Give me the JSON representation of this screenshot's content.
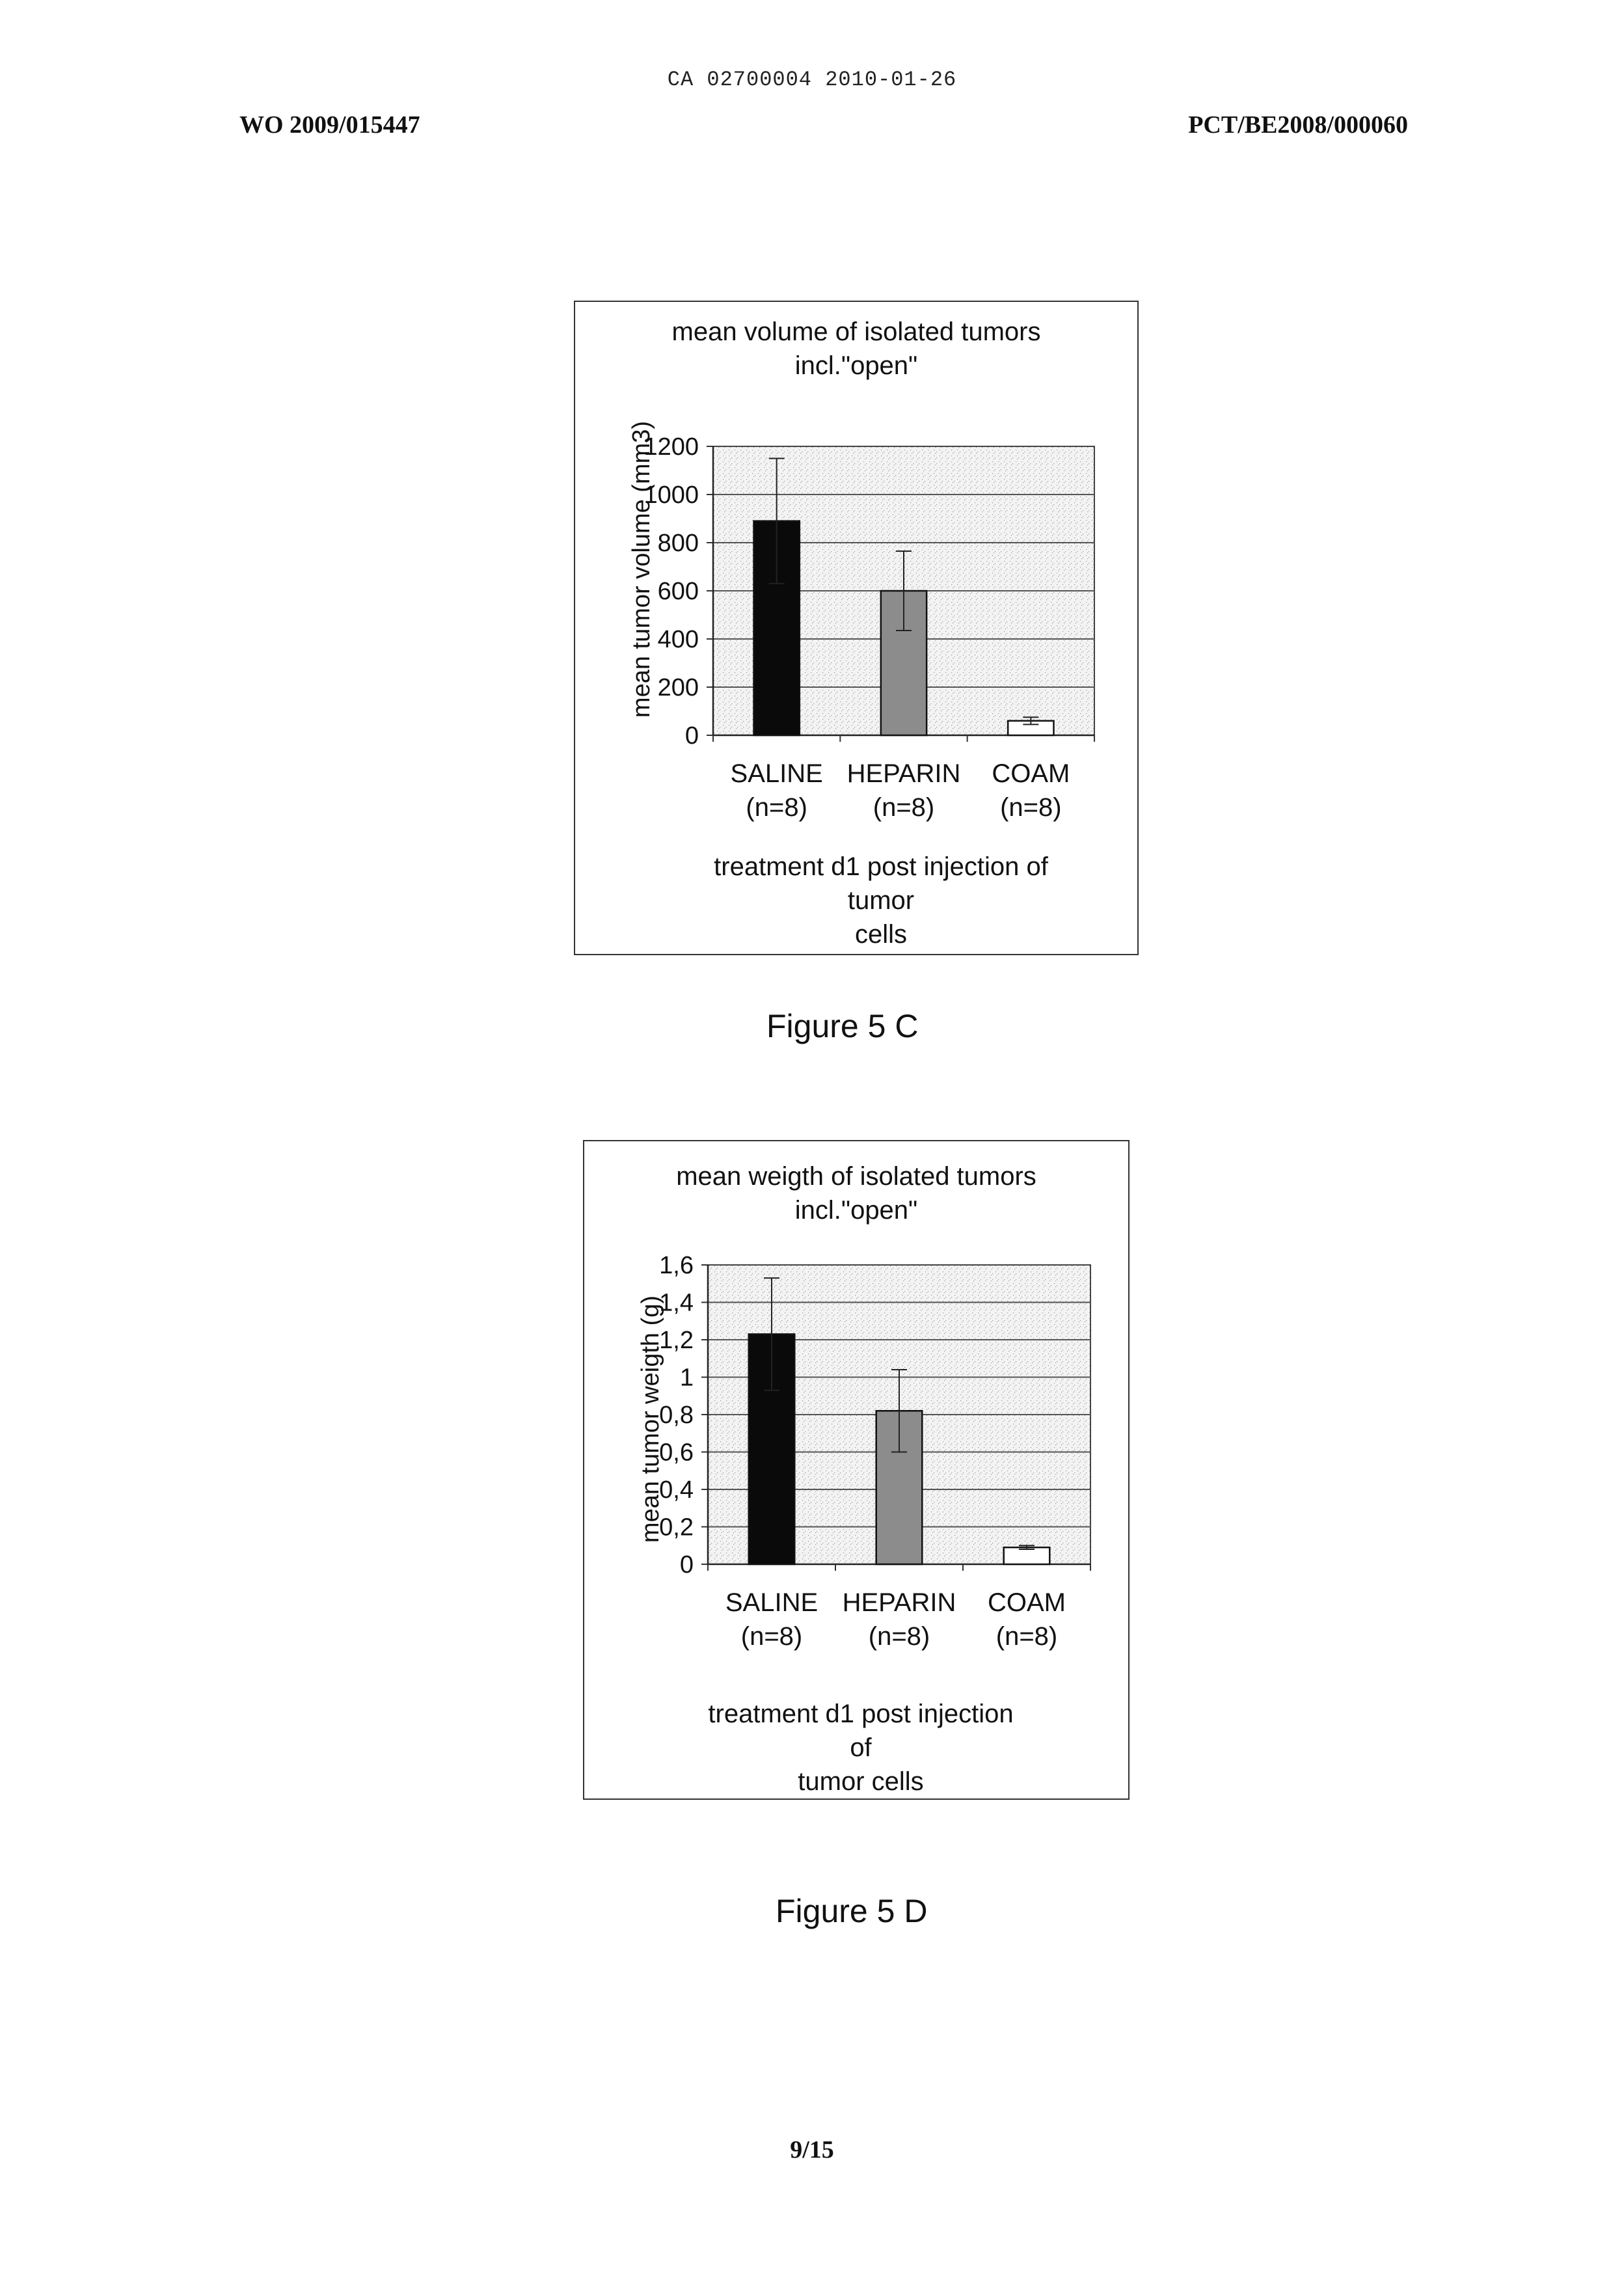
{
  "header": {
    "top_stamp": "CA 02700004 2010-01-26",
    "left_id": "WO 2009/015447",
    "right_id": "PCT/BE2008/000060"
  },
  "figures": [
    {
      "caption": "Figure 5 C",
      "title_line1": "mean volume of isolated tumors",
      "title_line2": "incl.\"open\""
    },
    {
      "caption": "Figure 5 D",
      "title_line1": "mean weigth of isolated tumors",
      "title_line2": "incl.\"open\""
    }
  ],
  "page_number": "9/15",
  "chart_data": [
    {
      "type": "bar",
      "title": "mean volume of isolated tumors incl.\"open\"",
      "categories": [
        "SALINE",
        "HEPARIN",
        "COAM"
      ],
      "category_sublabels": [
        "(n=8)",
        "(n=8)",
        "(n=8)"
      ],
      "values": [
        890,
        600,
        60
      ],
      "errors": [
        260,
        165,
        15
      ],
      "bar_colors": [
        "#0a0a0a",
        "#8c8c8c",
        "#ffffff"
      ],
      "ylabel": "mean tumor volume (mm3)",
      "xlabel_line1": "treatment d1 post injection of tumor",
      "xlabel_line2": "cells",
      "ylim": [
        0,
        1200
      ],
      "yticks": [
        0,
        200,
        400,
        600,
        800,
        1000,
        1200
      ],
      "ytick_labels": [
        "0",
        "200",
        "400",
        "600",
        "800",
        "1000",
        "1200"
      ],
      "grid": true
    },
    {
      "type": "bar",
      "title": "mean weigth of isolated tumors incl.\"open\"",
      "categories": [
        "SALINE",
        "HEPARIN",
        "COAM"
      ],
      "category_sublabels": [
        "(n=8)",
        "(n=8)",
        "(n=8)"
      ],
      "values": [
        1.23,
        0.82,
        0.09
      ],
      "errors": [
        0.3,
        0.22,
        0.01
      ],
      "bar_colors": [
        "#0a0a0a",
        "#8c8c8c",
        "#ffffff"
      ],
      "ylabel": "mean tumor weigth (g)",
      "xlabel_line1": "treatment d1 post injection of",
      "xlabel_line2": "tumor cells",
      "ylim": [
        0,
        1.6
      ],
      "yticks": [
        0,
        0.2,
        0.4,
        0.6,
        0.8,
        1,
        1.2,
        1.4,
        1.6
      ],
      "ytick_labels": [
        "0",
        "0,2",
        "0,4",
        "0,6",
        "0,8",
        "1",
        "1,2",
        "1,4",
        "1,6"
      ],
      "grid": true
    }
  ]
}
